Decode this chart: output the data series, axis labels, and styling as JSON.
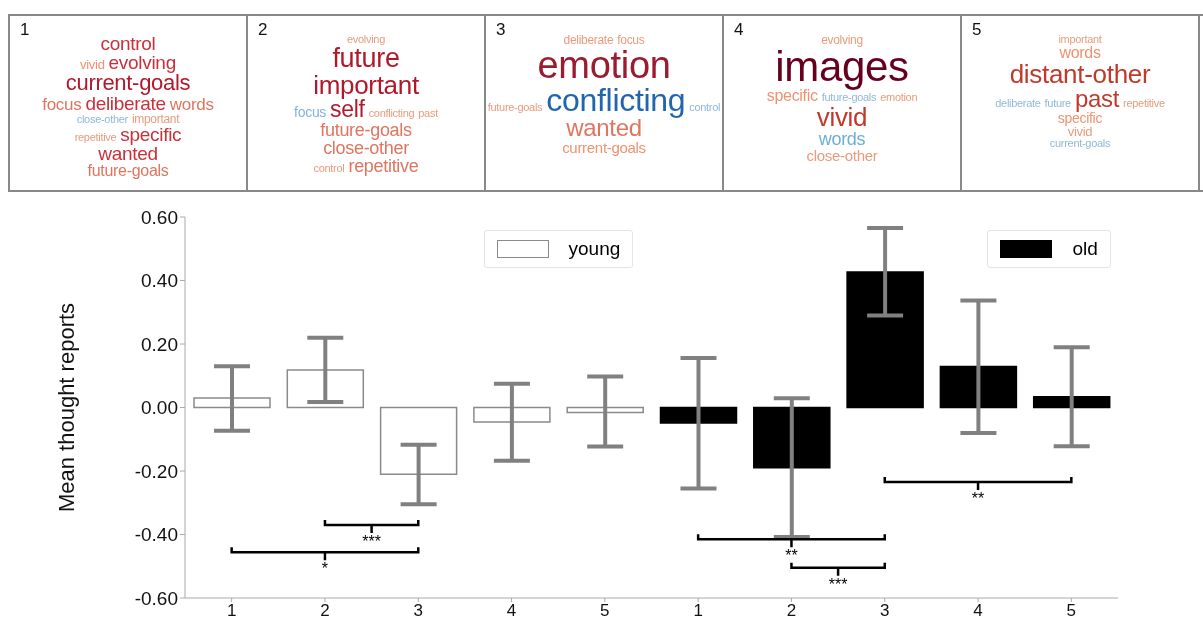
{
  "chart_data": [
    {
      "type": "other",
      "title": "1",
      "annotations": [
        "control",
        "vivid",
        "evolving",
        "current-goals",
        "focus",
        "deliberate",
        "words",
        "close-other",
        "important",
        "repetitive",
        "specific",
        "wanted",
        "future-goals"
      ],
      "colors": [
        "#c9303a",
        "#ee9270",
        "#c9303a",
        "#b2182b",
        "#e0755f",
        "#c9303a",
        "#e0755f",
        "#8fb9d8",
        "#e99b7d",
        "#e99b7d",
        "#c9303a",
        "#c9303a",
        "#e0755f"
      ]
    },
    {
      "type": "other",
      "title": "2",
      "annotations": [
        "evolving",
        "future",
        "important",
        "focus",
        "self",
        "conflicting",
        "past",
        "future-goals",
        "close-other",
        "control",
        "repetitive"
      ],
      "colors": [
        "#e99b7d",
        "#b2182b",
        "#b2182b",
        "#7fb5d9",
        "#b2182b",
        "#e99b7d",
        "#e99b7d",
        "#e0755f",
        "#e0755f",
        "#e99b7d",
        "#e0755f"
      ]
    },
    {
      "type": "other",
      "title": "3",
      "annotations": [
        "deliberate",
        "focus",
        "emotion",
        "future-goals",
        "conflicting",
        "control",
        "wanted",
        "current-goals"
      ],
      "colors": [
        "#e99b7d",
        "#e99b7d",
        "#9b1b30",
        "#e99b7d",
        "#2166ac",
        "#8fb9d8",
        "#e0755f",
        "#ee9270"
      ]
    },
    {
      "type": "other",
      "title": "4",
      "annotations": [
        "evolving",
        "images",
        "specific",
        "future-goals",
        "emotion",
        "vivid",
        "words",
        "close-other"
      ],
      "colors": [
        "#e99b7d",
        "#67001f",
        "#ee9270",
        "#8fb9d8",
        "#e99b7d",
        "#c0392b",
        "#6baed6",
        "#e99b7d"
      ]
    },
    {
      "type": "other",
      "title": "5",
      "annotations": [
        "important",
        "words",
        "distant-other",
        "deliberate",
        "future",
        "past",
        "repetitive",
        "specific",
        "vivid",
        "current-goals"
      ],
      "colors": [
        "#e99b7d",
        "#ee9270",
        "#c0392b",
        "#8fb9d8",
        "#8fb9d8",
        "#c0392b",
        "#e99b7d",
        "#ee9270",
        "#e99b7d",
        "#8fb9d8"
      ]
    },
    {
      "type": "bar",
      "ylabel": "Mean thought reports",
      "categories": [
        "1",
        "2",
        "3",
        "4",
        "5",
        "1",
        "2",
        "3",
        "4",
        "5"
      ],
      "series": [
        {
          "name": "young",
          "color": "#ffffff",
          "values": [
            0.03,
            0.118,
            -0.21,
            -0.046,
            -0.016,
            null,
            null,
            null,
            null,
            null
          ],
          "errors": [
            [
              -0.073,
              0.13
            ],
            [
              0.017,
              0.22
            ],
            [
              -0.305,
              -0.117
            ],
            [
              -0.168,
              0.075
            ],
            [
              -0.123,
              0.098
            ],
            null,
            null,
            null,
            null,
            null
          ]
        },
        {
          "name": "old",
          "color": "#000000",
          "values": [
            null,
            null,
            null,
            null,
            null,
            -0.049,
            -0.19,
            0.427,
            0.129,
            0.034
          ],
          "errors": [
            null,
            null,
            null,
            null,
            null,
            [
              -0.255,
              0.156
            ],
            [
              -0.408,
              0.029
            ],
            [
              0.29,
              0.565
            ],
            [
              -0.08,
              0.337
            ],
            [
              -0.122,
              0.19
            ]
          ]
        }
      ],
      "ylim": [
        -0.6,
        0.6
      ],
      "yticks": [
        {
          "value": -0.6,
          "label": "-0.60"
        },
        {
          "value": -0.4,
          "label": "-0.40"
        },
        {
          "value": -0.2,
          "label": "-0.20"
        },
        {
          "value": 0,
          "label": "0.00"
        },
        {
          "value": 0.2,
          "label": "0.20"
        },
        {
          "value": 0.4,
          "label": "0.40"
        },
        {
          "value": 0.6,
          "label": "0.60"
        }
      ],
      "grid": false,
      "legend": "top",
      "annotations": [
        "***",
        "*",
        "**",
        "***",
        "**"
      ]
    }
  ]
}
